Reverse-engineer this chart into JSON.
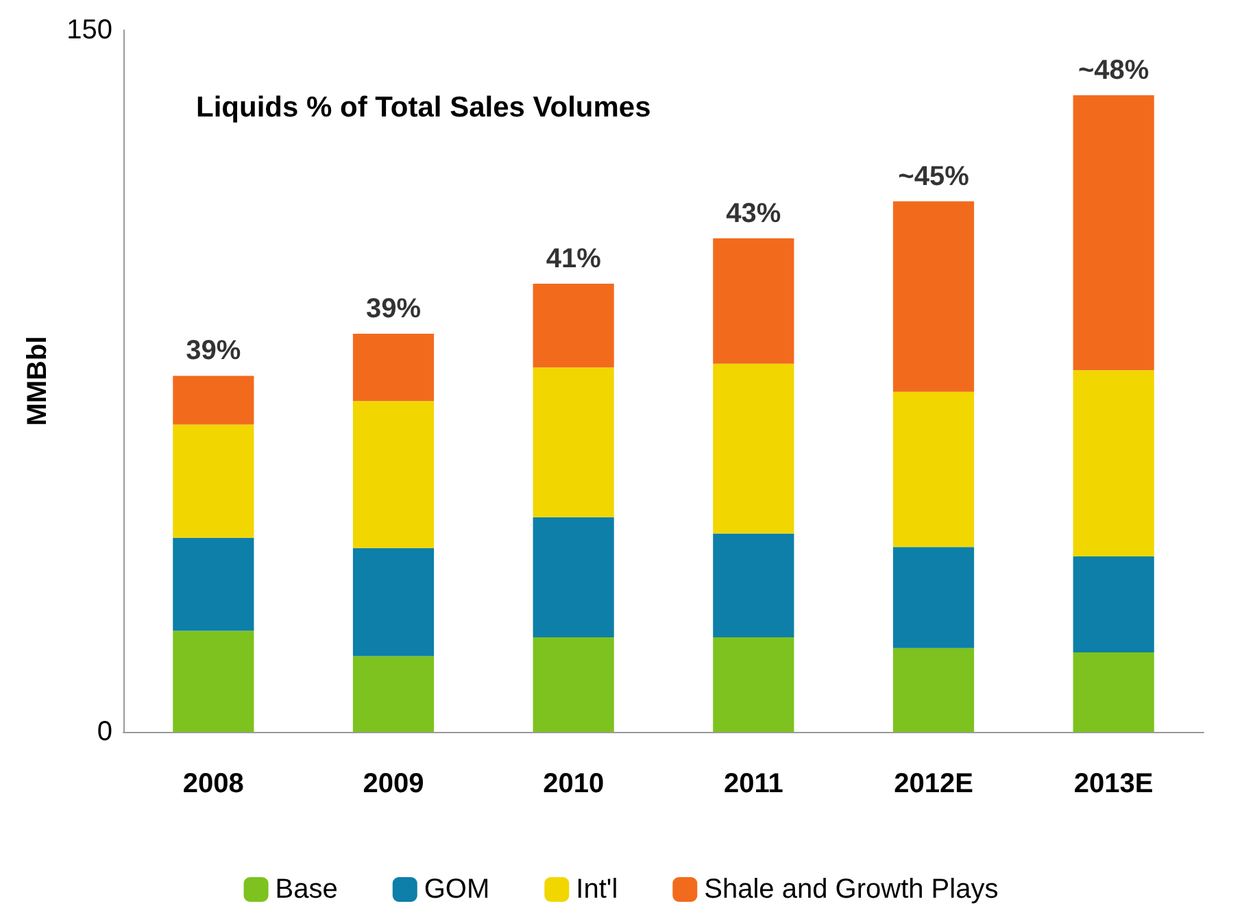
{
  "chart_data": {
    "type": "bar",
    "title": "Liquids % of Total Sales Volumes",
    "ylabel": "MMBbl",
    "categories": [
      "2008",
      "2009",
      "2010",
      "2011",
      "2012E",
      "2013E"
    ],
    "stacked": true,
    "series": [
      {
        "name": "Base",
        "color": "#7dc21e",
        "values": [
          21.6,
          16.2,
          20.2,
          20.2,
          17.9,
          17.0
        ]
      },
      {
        "name": "GOM",
        "color": "#0d7fa8",
        "values": [
          19.9,
          23.1,
          25.7,
          22.2,
          21.6,
          20.5
        ]
      },
      {
        "name": "Int'l",
        "color": "#f2d600",
        "values": [
          24.2,
          31.4,
          32.0,
          36.3,
          33.2,
          39.8
        ]
      },
      {
        "name": "Shale and Growth Plays",
        "color": "#f26b1d",
        "values": [
          10.4,
          14.4,
          17.9,
          26.8,
          40.7,
          58.8
        ]
      }
    ],
    "annotations": [
      {
        "text": "39%",
        "x": "2008",
        "y": 76.1
      },
      {
        "text": "39%",
        "x": "2009",
        "y": 85.1
      },
      {
        "text": "41%",
        "x": "2010",
        "y": 95.8
      },
      {
        "text": "43%",
        "x": "2011",
        "y": 105.5
      },
      {
        "text": "~45%",
        "x": "2012E",
        "y": 113.4
      },
      {
        "text": "~48%",
        "x": "2013E",
        "y": 136.1
      }
    ],
    "ylim": [
      0,
      150
    ],
    "yticks": [
      0,
      150
    ],
    "grid": false,
    "legend": "bottom"
  }
}
